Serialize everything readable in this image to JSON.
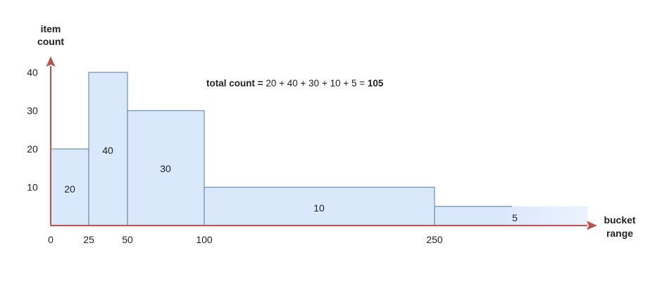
{
  "chart_data": {
    "type": "bar",
    "subtype": "variable-width histogram",
    "ylabel": [
      "item",
      "count"
    ],
    "xlabel": [
      "bucket",
      "range"
    ],
    "ylim": [
      0,
      40
    ],
    "y_ticks": [
      "10",
      "20",
      "30",
      "40"
    ],
    "x_ticks": [
      "0",
      "25",
      "50",
      "100",
      "250"
    ],
    "x_scale": "non-linear",
    "grid": false,
    "buckets": [
      {
        "label": "20",
        "x_start": 0,
        "x_end": 25,
        "value": 20
      },
      {
        "label": "40",
        "x_start": 25,
        "x_end": 50,
        "value": 40
      },
      {
        "label": "30",
        "x_start": 50,
        "x_end": 100,
        "value": 30
      },
      {
        "label": "10",
        "x_start": 100,
        "x_end": 250,
        "value": 10
      },
      {
        "label": "5",
        "x_start": 250,
        "x_end": null,
        "value": 5
      }
    ],
    "annotation": {
      "prefix": "total count = ",
      "expression": "20 + 40 + 30 + 10 + 5 = ",
      "total": "105"
    },
    "colors": {
      "bar_fill": "#dae8fc",
      "bar_stroke": "#6c8ebf",
      "axis": "#b85450"
    }
  }
}
